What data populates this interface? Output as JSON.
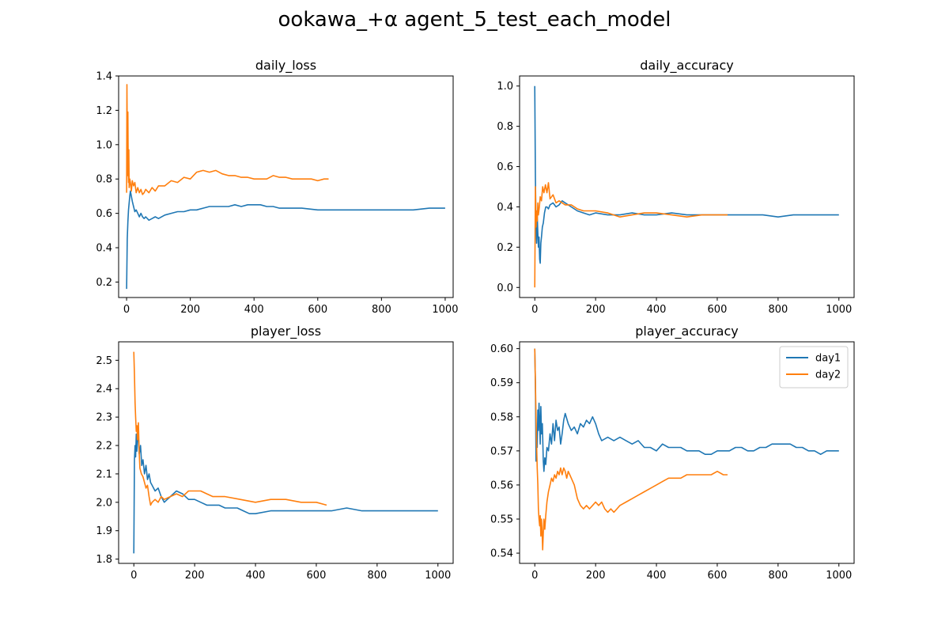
{
  "figure": {
    "title": "ookawa_+α agent_5_test_each_model"
  },
  "colors": {
    "day1": "#1f77b4",
    "day2": "#ff7f0e"
  },
  "chart_data": [
    {
      "type": "line",
      "title": "daily_loss",
      "xlim": [
        -25,
        1025
      ],
      "ylim": [
        0.11,
        1.4
      ],
      "xticks": [
        0,
        200,
        400,
        600,
        800,
        1000
      ],
      "yticks": [
        0.2,
        0.4,
        0.6,
        0.8,
        1.0,
        1.2,
        1.4
      ],
      "ytick_labels": [
        "0.2",
        "0.4",
        "0.6",
        "0.8",
        "1.0",
        "1.2",
        "1.4"
      ],
      "legend": null,
      "series": [
        {
          "name": "day1",
          "x": [
            0,
            2,
            4,
            6,
            8,
            10,
            12,
            15,
            18,
            22,
            26,
            30,
            35,
            40,
            45,
            50,
            55,
            60,
            70,
            80,
            90,
            100,
            120,
            140,
            160,
            180,
            200,
            220,
            240,
            260,
            280,
            300,
            320,
            340,
            360,
            380,
            400,
            420,
            440,
            460,
            480,
            500,
            550,
            600,
            650,
            700,
            750,
            800,
            850,
            900,
            950,
            1000
          ],
          "y": [
            0.16,
            0.45,
            0.55,
            0.62,
            0.66,
            0.7,
            0.73,
            0.7,
            0.67,
            0.64,
            0.61,
            0.62,
            0.6,
            0.58,
            0.6,
            0.58,
            0.57,
            0.58,
            0.56,
            0.57,
            0.58,
            0.57,
            0.59,
            0.6,
            0.61,
            0.61,
            0.62,
            0.62,
            0.63,
            0.64,
            0.64,
            0.64,
            0.64,
            0.65,
            0.64,
            0.65,
            0.65,
            0.65,
            0.64,
            0.64,
            0.63,
            0.63,
            0.63,
            0.62,
            0.62,
            0.62,
            0.62,
            0.62,
            0.62,
            0.62,
            0.63,
            0.63
          ]
        },
        {
          "name": "day2",
          "x": [
            0,
            1,
            2,
            3,
            4,
            5,
            6,
            7,
            8,
            10,
            12,
            15,
            18,
            22,
            26,
            30,
            35,
            40,
            45,
            50,
            55,
            60,
            70,
            80,
            90,
            100,
            120,
            140,
            160,
            180,
            200,
            220,
            240,
            260,
            280,
            300,
            320,
            340,
            360,
            380,
            400,
            420,
            440,
            460,
            480,
            500,
            520,
            540,
            560,
            580,
            600,
            620,
            634
          ],
          "y": [
            0.72,
            1.35,
            1.05,
            0.82,
            1.19,
            0.9,
            0.78,
            0.97,
            0.75,
            0.8,
            0.78,
            0.73,
            0.79,
            0.76,
            0.78,
            0.72,
            0.75,
            0.72,
            0.74,
            0.71,
            0.72,
            0.74,
            0.72,
            0.75,
            0.73,
            0.76,
            0.76,
            0.79,
            0.78,
            0.81,
            0.8,
            0.84,
            0.85,
            0.84,
            0.85,
            0.83,
            0.82,
            0.82,
            0.81,
            0.81,
            0.8,
            0.8,
            0.8,
            0.82,
            0.81,
            0.81,
            0.8,
            0.8,
            0.8,
            0.8,
            0.79,
            0.8,
            0.8
          ]
        }
      ]
    },
    {
      "type": "line",
      "title": "daily_accuracy",
      "xlim": [
        -50,
        1050
      ],
      "ylim": [
        -0.05,
        1.05
      ],
      "xticks": [
        0,
        200,
        400,
        600,
        800,
        1000
      ],
      "yticks": [
        0.0,
        0.2,
        0.4,
        0.6,
        0.8,
        1.0
      ],
      "ytick_labels": [
        "0.0",
        "0.2",
        "0.4",
        "0.6",
        "0.8",
        "1.0"
      ],
      "legend": null,
      "series": [
        {
          "name": "day1",
          "x": [
            0,
            2,
            4,
            6,
            8,
            10,
            12,
            14,
            16,
            18,
            20,
            22,
            25,
            28,
            32,
            36,
            40,
            45,
            50,
            60,
            70,
            80,
            90,
            100,
            120,
            140,
            160,
            180,
            200,
            240,
            280,
            320,
            360,
            400,
            450,
            500,
            550,
            600,
            650,
            700,
            750,
            800,
            850,
            900,
            950,
            1000
          ],
          "y": [
            1.0,
            0.55,
            0.3,
            0.22,
            0.36,
            0.27,
            0.2,
            0.25,
            0.14,
            0.12,
            0.22,
            0.25,
            0.3,
            0.32,
            0.37,
            0.4,
            0.4,
            0.39,
            0.41,
            0.42,
            0.4,
            0.41,
            0.43,
            0.42,
            0.4,
            0.38,
            0.37,
            0.36,
            0.37,
            0.36,
            0.36,
            0.37,
            0.36,
            0.36,
            0.37,
            0.36,
            0.36,
            0.36,
            0.36,
            0.36,
            0.36,
            0.35,
            0.36,
            0.36,
            0.36,
            0.36
          ]
        },
        {
          "name": "day2",
          "x": [
            0,
            2,
            4,
            6,
            8,
            10,
            12,
            15,
            18,
            22,
            26,
            30,
            35,
            40,
            45,
            50,
            60,
            70,
            80,
            100,
            120,
            140,
            160,
            180,
            200,
            240,
            280,
            320,
            360,
            400,
            450,
            500,
            550,
            600,
            634
          ],
          "y": [
            0.0,
            0.5,
            0.3,
            0.38,
            0.33,
            0.42,
            0.36,
            0.4,
            0.45,
            0.43,
            0.5,
            0.47,
            0.51,
            0.47,
            0.52,
            0.44,
            0.46,
            0.42,
            0.43,
            0.41,
            0.41,
            0.39,
            0.38,
            0.38,
            0.38,
            0.37,
            0.35,
            0.36,
            0.37,
            0.37,
            0.36,
            0.35,
            0.36,
            0.36,
            0.36
          ]
        }
      ]
    },
    {
      "type": "line",
      "title": "player_loss",
      "xlim": [
        -50,
        1050
      ],
      "ylim": [
        1.785,
        2.565
      ],
      "xticks": [
        0,
        200,
        400,
        600,
        800,
        1000
      ],
      "yticks": [
        1.8,
        1.9,
        2.0,
        2.1,
        2.2,
        2.3,
        2.4,
        2.5
      ],
      "ytick_labels": [
        "1.8",
        "1.9",
        "2.0",
        "2.1",
        "2.2",
        "2.3",
        "2.4",
        "2.5"
      ],
      "legend": null,
      "series": [
        {
          "name": "day1",
          "x": [
            0,
            2,
            4,
            6,
            8,
            10,
            12,
            15,
            18,
            22,
            26,
            30,
            35,
            40,
            45,
            50,
            55,
            60,
            70,
            80,
            90,
            100,
            110,
            120,
            140,
            160,
            180,
            200,
            220,
            240,
            260,
            280,
            300,
            320,
            340,
            360,
            380,
            400,
            450,
            500,
            550,
            600,
            650,
            700,
            750,
            800,
            850,
            900,
            950,
            1000
          ],
          "y": [
            1.82,
            2.15,
            2.2,
            2.16,
            2.24,
            2.18,
            2.25,
            2.22,
            2.17,
            2.2,
            2.13,
            2.15,
            2.1,
            2.13,
            2.08,
            2.1,
            2.07,
            2.06,
            2.04,
            2.05,
            2.02,
            2.0,
            2.01,
            2.02,
            2.04,
            2.03,
            2.01,
            2.01,
            2.0,
            1.99,
            1.99,
            1.99,
            1.98,
            1.98,
            1.98,
            1.97,
            1.96,
            1.96,
            1.97,
            1.97,
            1.97,
            1.97,
            1.97,
            1.98,
            1.97,
            1.97,
            1.97,
            1.97,
            1.97,
            1.97
          ]
        },
        {
          "name": "day2",
          "x": [
            0,
            2,
            4,
            6,
            8,
            10,
            12,
            15,
            18,
            20,
            25,
            30,
            35,
            40,
            45,
            50,
            55,
            60,
            70,
            80,
            90,
            100,
            120,
            140,
            160,
            180,
            200,
            220,
            240,
            260,
            280,
            300,
            350,
            400,
            450,
            500,
            550,
            600,
            634
          ],
          "y": [
            2.53,
            2.45,
            2.35,
            2.3,
            2.25,
            2.27,
            2.22,
            2.28,
            2.17,
            2.12,
            2.1,
            2.09,
            2.07,
            2.05,
            2.06,
            2.02,
            1.99,
            2.0,
            2.01,
            2.0,
            2.02,
            2.01,
            2.02,
            2.03,
            2.02,
            2.04,
            2.04,
            2.04,
            2.03,
            2.02,
            2.02,
            2.02,
            2.01,
            2.0,
            2.01,
            2.01,
            2.0,
            2.0,
            1.99
          ]
        }
      ]
    },
    {
      "type": "line",
      "title": "player_accuracy",
      "xlim": [
        -50,
        1050
      ],
      "ylim": [
        0.537,
        0.602
      ],
      "xticks": [
        0,
        200,
        400,
        600,
        800,
        1000
      ],
      "yticks": [
        0.54,
        0.55,
        0.56,
        0.57,
        0.58,
        0.59,
        0.6
      ],
      "ytick_labels": [
        "0.54",
        "0.55",
        "0.56",
        "0.57",
        "0.58",
        "0.59",
        "0.60"
      ],
      "legend": "upper right",
      "series": [
        {
          "name": "day1",
          "x": [
            0,
            2,
            4,
            6,
            8,
            10,
            12,
            14,
            16,
            18,
            20,
            22,
            25,
            28,
            30,
            33,
            36,
            40,
            45,
            50,
            55,
            60,
            65,
            70,
            75,
            80,
            85,
            90,
            95,
            100,
            110,
            120,
            130,
            140,
            150,
            160,
            170,
            180,
            190,
            200,
            210,
            220,
            240,
            260,
            280,
            300,
            320,
            340,
            360,
            380,
            400,
            420,
            440,
            460,
            480,
            500,
            520,
            540,
            560,
            580,
            600,
            620,
            640,
            660,
            680,
            700,
            720,
            740,
            760,
            780,
            800,
            820,
            840,
            860,
            880,
            900,
            920,
            940,
            960,
            980,
            1000
          ],
          "y": [
            0.6,
            0.59,
            0.567,
            0.575,
            0.571,
            0.582,
            0.576,
            0.584,
            0.578,
            0.572,
            0.583,
            0.575,
            0.578,
            0.567,
            0.564,
            0.568,
            0.566,
            0.571,
            0.57,
            0.575,
            0.572,
            0.578,
            0.573,
            0.579,
            0.576,
            0.577,
            0.572,
            0.575,
            0.579,
            0.581,
            0.578,
            0.576,
            0.577,
            0.575,
            0.578,
            0.577,
            0.579,
            0.578,
            0.58,
            0.578,
            0.575,
            0.573,
            0.574,
            0.573,
            0.574,
            0.573,
            0.572,
            0.573,
            0.571,
            0.571,
            0.57,
            0.572,
            0.571,
            0.571,
            0.571,
            0.57,
            0.57,
            0.57,
            0.569,
            0.569,
            0.57,
            0.57,
            0.57,
            0.571,
            0.571,
            0.57,
            0.57,
            0.571,
            0.571,
            0.572,
            0.572,
            0.572,
            0.572,
            0.571,
            0.571,
            0.57,
            0.57,
            0.569,
            0.57,
            0.57,
            0.57
          ]
        },
        {
          "name": "day2",
          "x": [
            0,
            2,
            4,
            6,
            8,
            10,
            12,
            14,
            16,
            18,
            20,
            22,
            24,
            26,
            28,
            30,
            33,
            36,
            40,
            45,
            50,
            55,
            60,
            65,
            70,
            75,
            80,
            85,
            90,
            95,
            100,
            105,
            110,
            115,
            120,
            130,
            140,
            150,
            160,
            170,
            180,
            190,
            200,
            210,
            220,
            230,
            240,
            250,
            260,
            270,
            280,
            300,
            320,
            340,
            360,
            380,
            400,
            420,
            440,
            460,
            480,
            500,
            520,
            540,
            560,
            580,
            600,
            620,
            634
          ],
          "y": [
            0.6,
            0.59,
            0.58,
            0.572,
            0.565,
            0.56,
            0.553,
            0.55,
            0.548,
            0.551,
            0.545,
            0.55,
            0.546,
            0.541,
            0.546,
            0.55,
            0.547,
            0.551,
            0.555,
            0.558,
            0.56,
            0.562,
            0.561,
            0.563,
            0.562,
            0.564,
            0.563,
            0.565,
            0.563,
            0.565,
            0.564,
            0.562,
            0.564,
            0.563,
            0.562,
            0.56,
            0.556,
            0.554,
            0.553,
            0.554,
            0.553,
            0.554,
            0.555,
            0.554,
            0.555,
            0.553,
            0.552,
            0.553,
            0.552,
            0.553,
            0.554,
            0.555,
            0.556,
            0.557,
            0.558,
            0.559,
            0.56,
            0.561,
            0.562,
            0.562,
            0.562,
            0.563,
            0.563,
            0.563,
            0.563,
            0.563,
            0.564,
            0.563,
            0.563
          ]
        }
      ]
    }
  ]
}
